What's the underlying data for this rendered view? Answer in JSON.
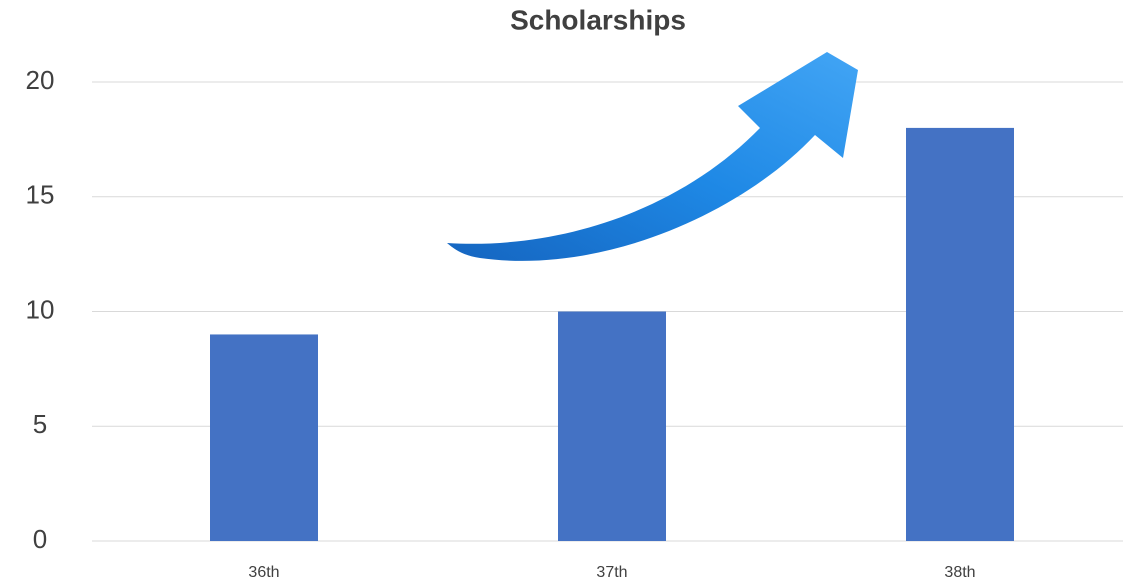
{
  "chart_data": {
    "type": "bar",
    "title": "Scholarships",
    "categories": [
      "36th",
      "37th",
      "38th"
    ],
    "values": [
      9,
      10,
      18
    ],
    "color": "#4472c4",
    "ylim": [
      0,
      20
    ],
    "yticks": [
      0,
      5,
      10,
      15,
      20
    ],
    "grid": true
  }
}
